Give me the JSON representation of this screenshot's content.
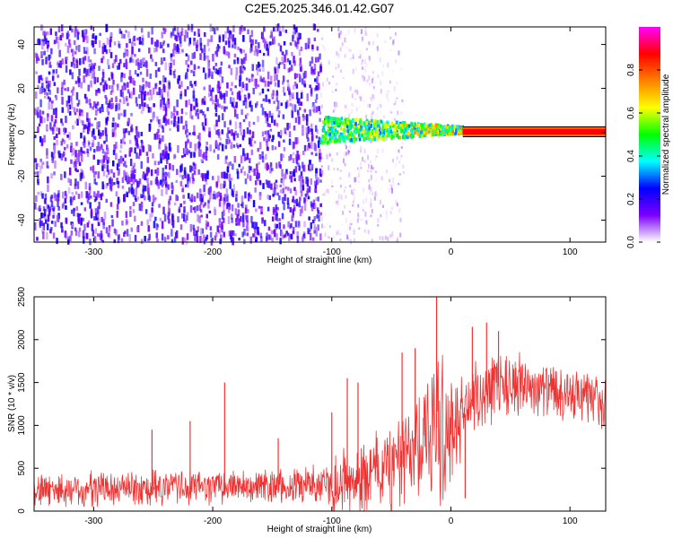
{
  "title": "C2E5.2025.346.01.42.G07",
  "chart_data": [
    {
      "type": "heatmap",
      "xlabel": "Height of straight line (km)",
      "ylabel": "Frequency (Hz)",
      "xlim": [
        -350,
        130
      ],
      "ylim": [
        -50,
        48
      ],
      "xticks": [
        -300,
        -200,
        -100,
        0,
        100
      ],
      "yticks": [
        -40,
        -20,
        0,
        20,
        40
      ],
      "colorbar": {
        "label": "Normalized spectral amplitude",
        "range": [
          0,
          1
        ],
        "ticks": [
          0.0,
          0.2,
          0.4,
          0.6,
          0.8
        ],
        "tick_labels": [
          "0.0",
          "0.2",
          "0.4",
          "0.6",
          "0.8"
        ],
        "colormap": [
          "#ffffff",
          "#7a00ff",
          "#0000ff",
          "#00ffff",
          "#00ff00",
          "#ffff00",
          "#ff8000",
          "#ff0000",
          "#ff00ff"
        ]
      },
      "regions": [
        {
          "x": [
            -350,
            -110
          ],
          "freq": [
            -50,
            48
          ],
          "amplitude": [
            0.05,
            0.25
          ],
          "pattern": "dense speckle"
        },
        {
          "x": [
            -110,
            -40
          ],
          "freq": [
            -50,
            48
          ],
          "amplitude": [
            0.0,
            0.1
          ],
          "pattern": "sparse speckle"
        },
        {
          "x": [
            -110,
            10
          ],
          "freq": [
            -5,
            6
          ],
          "amplitude": [
            0.3,
            0.8
          ],
          "pattern": "converging signal"
        },
        {
          "x": [
            10,
            130
          ],
          "freq": [
            -1,
            1.5
          ],
          "amplitude": [
            0.85,
            1.0
          ],
          "pattern": "steady tone"
        }
      ]
    },
    {
      "type": "line",
      "xlabel": "Height of straight line (km)",
      "ylabel": "SNR (10 * v/v)",
      "xlim": [
        -350,
        130
      ],
      "ylim": [
        0,
        2500
      ],
      "xticks": [
        -300,
        -200,
        -100,
        0,
        100
      ],
      "yticks": [
        0,
        500,
        1000,
        1500,
        2000,
        2500
      ],
      "color": "#ee3333",
      "envelope": {
        "x": [
          -350,
          -300,
          -250,
          -200,
          -150,
          -120,
          -100,
          -80,
          -60,
          -40,
          -25,
          -10,
          0,
          10,
          20,
          40,
          60,
          80,
          100,
          130
        ],
        "base": [
          250,
          280,
          290,
          300,
          310,
          320,
          360,
          420,
          500,
          650,
          900,
          1100,
          1000,
          1200,
          1350,
          1550,
          1500,
          1420,
          1380,
          1300
        ],
        "amp": [
          180,
          170,
          170,
          170,
          170,
          200,
          280,
          380,
          420,
          500,
          600,
          800,
          700,
          400,
          350,
          350,
          300,
          280,
          250,
          250
        ]
      },
      "spikes": [
        {
          "x": -251,
          "y": 950
        },
        {
          "x": -219,
          "y": 1050
        },
        {
          "x": -190,
          "y": 1500
        },
        {
          "x": -145,
          "y": 850
        },
        {
          "x": -100,
          "y": 1150
        },
        {
          "x": -87,
          "y": 1550
        },
        {
          "x": -78,
          "y": 1500
        },
        {
          "x": -41,
          "y": 1850
        },
        {
          "x": -30,
          "y": 1900
        },
        {
          "x": -12,
          "y": 2500
        },
        {
          "x": 12,
          "y": 150
        },
        {
          "x": 18,
          "y": 2150
        },
        {
          "x": 30,
          "y": 2200
        },
        {
          "x": 40,
          "y": 2100
        }
      ]
    }
  ]
}
